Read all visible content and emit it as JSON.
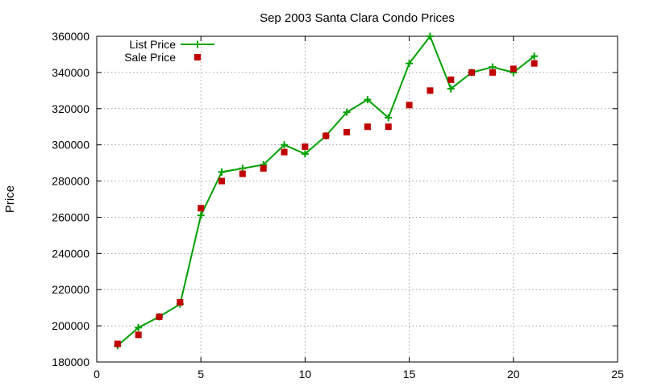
{
  "chart_data": {
    "type": "line",
    "title": "Sep 2003 Santa Clara Condo Prices",
    "xlabel": "",
    "ylabel": "Price",
    "xlim": [
      0,
      25
    ],
    "ylim": [
      180000,
      360000
    ],
    "xticks": [
      "0",
      "5",
      "10",
      "15",
      "20",
      "25"
    ],
    "yticks": [
      "180000",
      "200000",
      "220000",
      "240000",
      "260000",
      "280000",
      "300000",
      "320000",
      "340000",
      "360000"
    ],
    "grid": true,
    "legend_position": "top-left",
    "series": [
      {
        "name": "List Price",
        "style": "line-with-plus-markers",
        "color": "#00a000",
        "x": [
          1,
          2,
          3,
          4,
          5,
          6,
          7,
          8,
          9,
          10,
          11,
          12,
          13,
          14,
          15,
          16,
          17,
          18,
          19,
          20,
          21
        ],
        "y": [
          189000,
          199000,
          205000,
          212000,
          261000,
          285000,
          287000,
          289000,
          300000,
          295000,
          305000,
          318000,
          325000,
          315000,
          345000,
          360000,
          331000,
          340000,
          343000,
          340000,
          349000
        ]
      },
      {
        "name": "Sale Price",
        "style": "square-markers",
        "color": "#c00000",
        "x": [
          1,
          2,
          3,
          4,
          5,
          6,
          7,
          8,
          9,
          10,
          11,
          12,
          13,
          14,
          15,
          16,
          17,
          18,
          19,
          20,
          21
        ],
        "y": [
          190000,
          195000,
          205000,
          213000,
          265000,
          280000,
          284000,
          287000,
          296000,
          299000,
          305000,
          307000,
          310000,
          310000,
          322000,
          330000,
          336000,
          340000,
          340000,
          342000,
          345000
        ]
      }
    ]
  }
}
